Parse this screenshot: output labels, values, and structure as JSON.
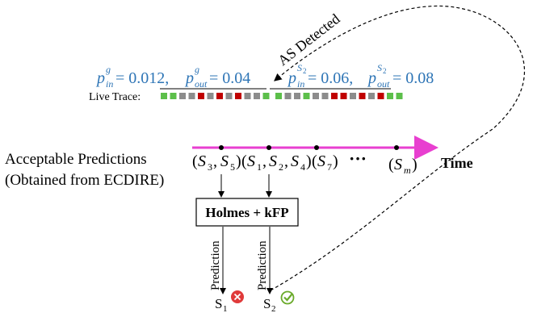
{
  "annotation": {
    "as_detected": "AS Detected"
  },
  "probs": {
    "general": {
      "p": "p",
      "in": "in",
      "out": "out",
      "sup": "g",
      "eq_in": " = 0.012, ",
      "eq_out": " = 0.04"
    },
    "site": {
      "p": "p",
      "in": "in",
      "out": "out",
      "sup_base": "S",
      "sup_sub": "2",
      "eq_in": " = 0.06, ",
      "eq_out": " = 0.08"
    }
  },
  "live_trace": {
    "label": "Live Trace:",
    "cells": [
      "green",
      "green",
      "gray",
      "gray",
      "red",
      "gray",
      "red",
      "gray",
      "red",
      "gray",
      "gray",
      "green",
      "green",
      "gray",
      "gray",
      "green",
      "gray",
      "gray",
      "red",
      "red",
      "gray",
      "red",
      "gray",
      "red",
      "green",
      "green"
    ],
    "colors": {
      "green": "#5cbf4a",
      "gray": "#8c8c8c",
      "red": "#c00000"
    }
  },
  "predictions": {
    "label_line1": "Acceptable Predictions",
    "label_line2": "(Obtained from ECDIRE)",
    "groups": [
      {
        "open": "(",
        "sites": [
          {
            "s": "S",
            "n": "3"
          },
          {
            "s": "S",
            "n": "5"
          }
        ],
        "close": ")"
      },
      {
        "open": "(",
        "sites": [
          {
            "s": "S",
            "n": "1"
          },
          {
            "s": "S",
            "n": "2"
          },
          {
            "s": "S",
            "n": "4"
          }
        ],
        "close": ")"
      },
      {
        "open": "(",
        "sites": [
          {
            "s": "S",
            "n": "7"
          }
        ],
        "close": ")"
      }
    ],
    "ellipsis": "···",
    "last": {
      "open": "(",
      "s": "S",
      "n": "m",
      "close": ")"
    },
    "axis_label": "Time",
    "axis_color": "#e83fd0"
  },
  "classifier": {
    "label": "Holmes + kFP"
  },
  "outputs": [
    {
      "arrow_label": "Prediction",
      "site": "S",
      "sub": "1",
      "status": "wrong",
      "status_color": "#e03a3a"
    },
    {
      "arrow_label": "Prediction",
      "site": "S",
      "sub": "2",
      "status": "correct",
      "status_color": "#6aaa2a"
    }
  ]
}
